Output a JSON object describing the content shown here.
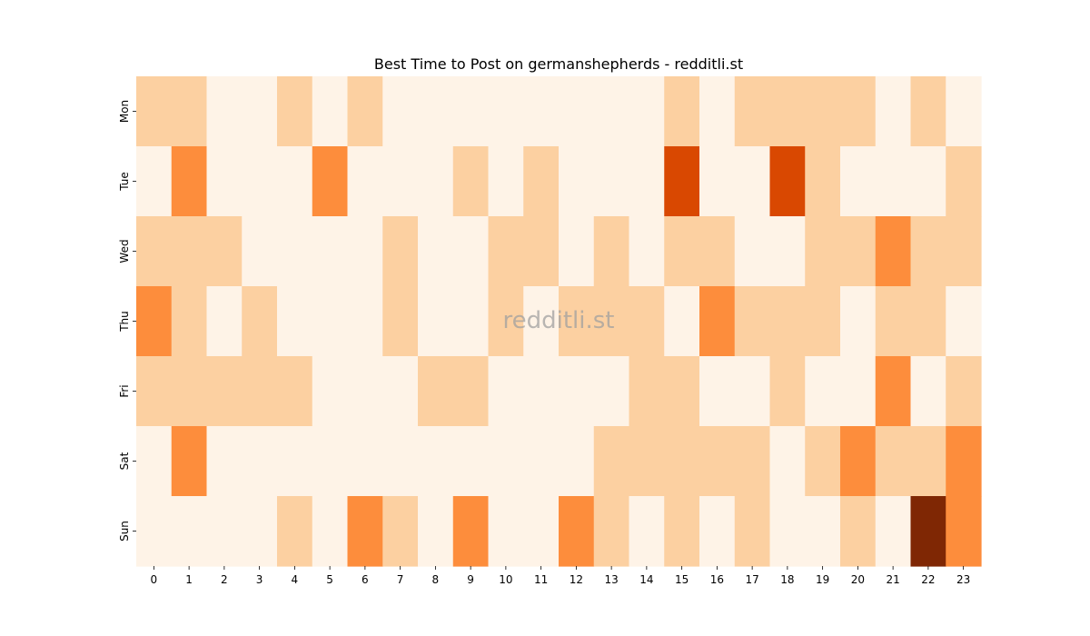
{
  "chart_data": {
    "type": "heatmap",
    "title": "Best Time to Post on germanshepherds - redditli.st",
    "watermark": "redditli.st",
    "xlabel": "",
    "ylabel": "",
    "x_categories": [
      "0",
      "1",
      "2",
      "3",
      "4",
      "5",
      "6",
      "7",
      "8",
      "9",
      "10",
      "11",
      "12",
      "13",
      "14",
      "15",
      "16",
      "17",
      "18",
      "19",
      "20",
      "21",
      "22",
      "23"
    ],
    "y_categories": [
      "Mon",
      "Tue",
      "Wed",
      "Thu",
      "Fri",
      "Sat",
      "Sun"
    ],
    "values": [
      [
        1,
        1,
        0,
        0,
        1,
        0,
        1,
        0,
        0,
        0,
        0,
        0,
        0,
        0,
        0,
        1,
        0,
        1,
        1,
        1,
        1,
        0,
        1,
        0
      ],
      [
        0,
        2,
        0,
        0,
        0,
        2,
        0,
        0,
        0,
        1,
        0,
        1,
        0,
        0,
        0,
        3,
        0,
        0,
        3,
        1,
        0,
        0,
        0,
        1
      ],
      [
        1,
        1,
        1,
        0,
        0,
        0,
        0,
        1,
        0,
        0,
        1,
        1,
        0,
        1,
        0,
        1,
        1,
        0,
        0,
        1,
        1,
        2,
        1,
        1
      ],
      [
        2,
        1,
        0,
        1,
        0,
        0,
        0,
        1,
        0,
        0,
        1,
        0,
        1,
        1,
        1,
        0,
        2,
        1,
        1,
        1,
        0,
        1,
        1,
        0
      ],
      [
        1,
        1,
        1,
        1,
        1,
        0,
        0,
        0,
        1,
        1,
        0,
        0,
        0,
        0,
        1,
        1,
        0,
        0,
        1,
        0,
        0,
        2,
        0,
        1
      ],
      [
        0,
        2,
        0,
        0,
        0,
        0,
        0,
        0,
        0,
        0,
        0,
        0,
        0,
        1,
        1,
        1,
        1,
        1,
        0,
        1,
        2,
        1,
        1,
        2
      ],
      [
        0,
        0,
        0,
        0,
        1,
        0,
        2,
        1,
        0,
        2,
        0,
        0,
        2,
        1,
        0,
        1,
        0,
        1,
        0,
        0,
        1,
        0,
        4,
        2
      ]
    ],
    "colormap": "Oranges",
    "level_colors": [
      "#fef3e7",
      "#fcd0a1",
      "#fd8d3c",
      "#d94801",
      "#7f2704"
    ],
    "colorbar": false,
    "grid": false
  }
}
